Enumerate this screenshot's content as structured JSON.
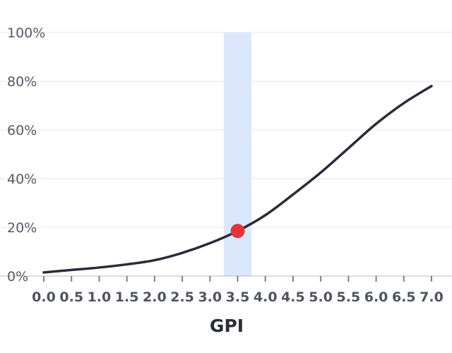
{
  "chart_data": {
    "type": "line",
    "title": "",
    "xlabel": "GPI",
    "ylabel": "",
    "xlim": [
      0,
      7.0
    ],
    "ylim": [
      0,
      100
    ],
    "x_ticks": [
      0.0,
      0.5,
      1.0,
      1.5,
      2.0,
      2.5,
      3.0,
      3.5,
      4.0,
      4.5,
      5.0,
      5.5,
      6.0,
      6.5,
      7.0
    ],
    "x_tick_labels": [
      "0.0",
      "0.5",
      "1.0",
      "1.5",
      "2.0",
      "2.5",
      "3.0",
      "3.5",
      "4.0",
      "4.5",
      "5.0",
      "5.5",
      "6.0",
      "6.5",
      "7.0"
    ],
    "y_ticks": [
      0,
      20,
      40,
      60,
      80,
      100
    ],
    "y_tick_labels": [
      "0%",
      "20%",
      "40%",
      "60%",
      "80%",
      "100%"
    ],
    "grid": true,
    "series": [
      {
        "x": [
          0.0,
          0.5,
          1.0,
          1.5,
          2.0,
          2.5,
          3.0,
          3.5,
          4.0,
          4.5,
          5.0,
          5.5,
          6.0,
          6.5,
          7.0
        ],
        "y": [
          1.5,
          2.5,
          3.5,
          4.8,
          6.5,
          9.5,
          13.5,
          18.5,
          25,
          33.5,
          42.5,
          52.5,
          62.5,
          71,
          78
        ],
        "color": "#2a2b38"
      }
    ],
    "highlight_band": {
      "x": [
        3.25,
        3.75
      ],
      "color": "#dbe7fd"
    },
    "highlight_point": {
      "x": 3.5,
      "y": 18.5,
      "color": "#e2343a"
    }
  }
}
